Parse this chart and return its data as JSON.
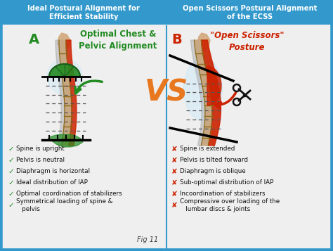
{
  "title_left": "Ideal Postural Alignment for\nEfficient Stability",
  "title_right": "Open Scissors Postural Alignment\nof the ECSS",
  "label_a": "A",
  "label_b": "B",
  "subtitle_left": "Optimal Chest &\nPelvic Alignment",
  "subtitle_right": "\"Open Scissors\"\nPosture",
  "vs_text": "VS",
  "fig_label": "Fig 11",
  "left_checks": [
    "Spine is upright",
    "Pelvis is neutral",
    "Diaphragm is horizontal",
    "Ideal distribution of IAP",
    "Optimal coordination of stabilizers",
    "Symmetrical loading of spine &\n   pelvis"
  ],
  "right_crosses": [
    "Spine is extended",
    "Pelvis is tilted forward",
    "Diaphragm is oblique",
    "Sub-optimal distribution of IAP",
    "Incoordination of stabilizers",
    "Compressive over loading of the\n   lumbar discs & joints"
  ],
  "bg_color": "#e8e8e8",
  "panel_bg": "#efefef",
  "header_bg": "#3399cc",
  "header_text_color": "#ffffff",
  "check_color": "#228B22",
  "cross_color": "#cc2200",
  "vs_color": "#e87820",
  "subtitle_left_color": "#228B22",
  "subtitle_right_color": "#cc2200",
  "label_a_color": "#228B22",
  "label_b_color": "#cc2200",
  "body_text_color": "#111111",
  "border_color": "#3399cc",
  "spine_color": "#c8a882",
  "spine_dark": "#8B6914",
  "muscle_red": "#cc2200",
  "diaphragm_green": "#228B22",
  "neck_color": "#d2a87c"
}
